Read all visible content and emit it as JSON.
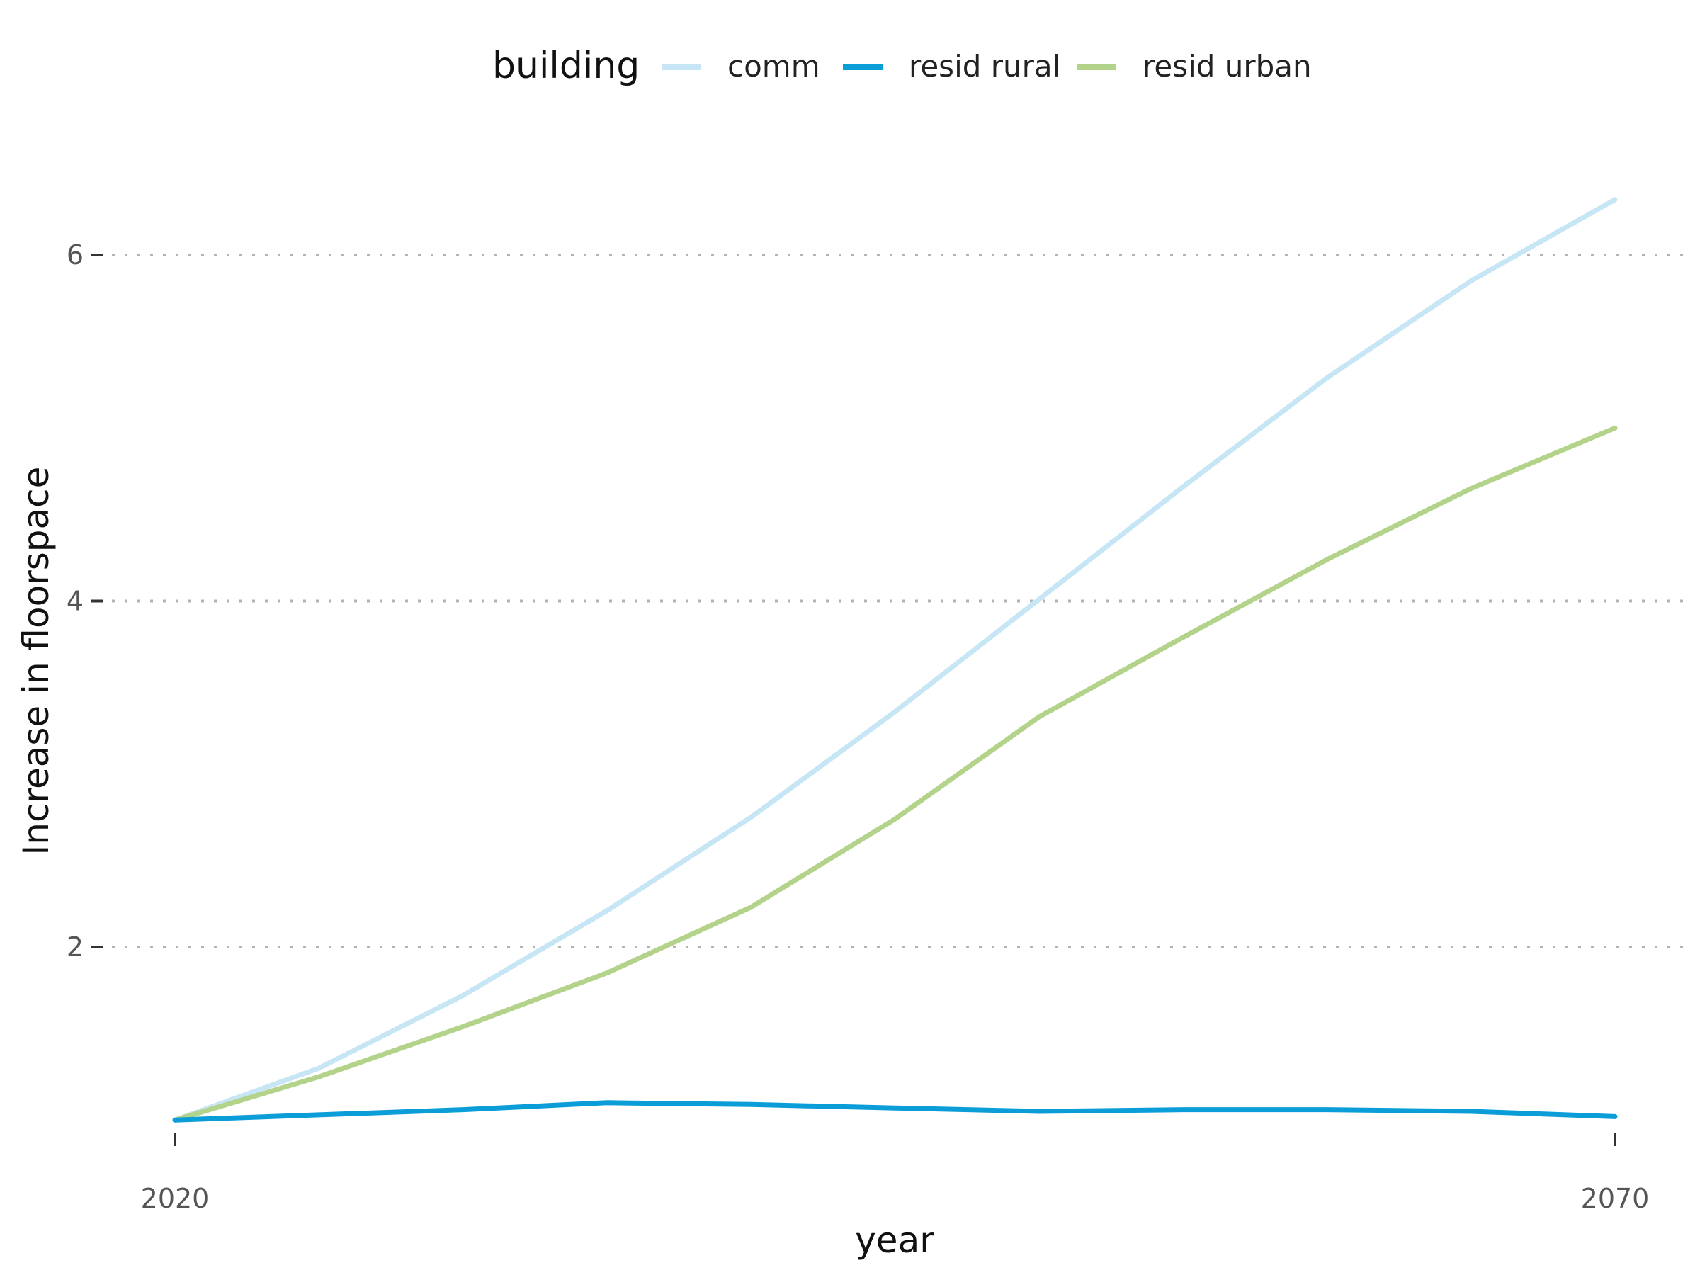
{
  "chart_data": {
    "type": "line",
    "x": [
      2020,
      2025,
      2030,
      2035,
      2040,
      2045,
      2050,
      2055,
      2060,
      2065,
      2070
    ],
    "xticks": [
      "2020",
      "2070"
    ],
    "yticks": [
      "2",
      "4",
      "6"
    ],
    "xlabel": "year",
    "ylabel": "Increase in floorspace",
    "ylim": [
      0.75,
      6.6
    ],
    "xlim": [
      2020,
      2070
    ],
    "grid": "horizontal dotted",
    "legend": {
      "title": "building",
      "placement": "top"
    },
    "series": [
      {
        "name": "comm",
        "color": "#c6e5f5",
        "values": [
          1.0,
          1.3,
          1.72,
          2.21,
          2.75,
          3.36,
          4.01,
          4.66,
          5.29,
          5.85,
          6.32
        ]
      },
      {
        "name": "resid rural",
        "color": "#0b9dd8",
        "values": [
          1.0,
          1.03,
          1.06,
          1.1,
          1.09,
          1.07,
          1.05,
          1.06,
          1.06,
          1.05,
          1.02
        ]
      },
      {
        "name": "resid urban",
        "color": "#b3d38b",
        "values": [
          1.0,
          1.25,
          1.54,
          1.85,
          2.23,
          2.74,
          3.33,
          3.79,
          4.24,
          4.65,
          5.0
        ]
      }
    ]
  }
}
